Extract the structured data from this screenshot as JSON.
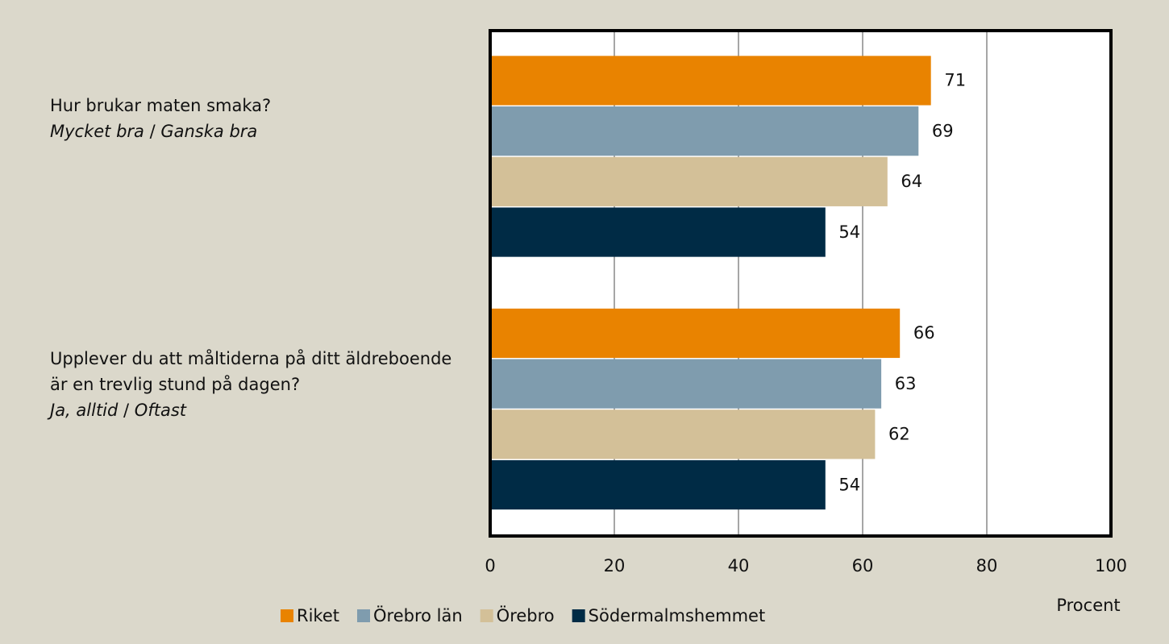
{
  "chart_data": {
    "type": "hbar",
    "categories": [
      "Hur brukar maten smaka?",
      "Upplever du att måltiderna på ditt äldreboende är en trevlig stund på dagen?"
    ],
    "category_notes": [
      [
        "Mycket bra",
        "Ganska bra"
      ],
      [
        "Ja, alltid",
        "Oftast"
      ]
    ],
    "series": [
      {
        "name": "Riket",
        "color": "#e98300",
        "values": [
          71,
          66
        ]
      },
      {
        "name": "Örebro län",
        "color": "#7f9cae",
        "values": [
          69,
          63
        ]
      },
      {
        "name": "Örebro",
        "color": "#d3c098",
        "values": [
          64,
          62
        ]
      },
      {
        "name": "Södermalmshemmet",
        "color": "#002b45",
        "values": [
          54,
          54
        ]
      }
    ],
    "xlabel": "Procent",
    "xlim": [
      0,
      100
    ],
    "xticks": [
      0,
      20,
      40,
      60,
      80,
      100
    ],
    "grid": true,
    "legend": "bottom"
  }
}
